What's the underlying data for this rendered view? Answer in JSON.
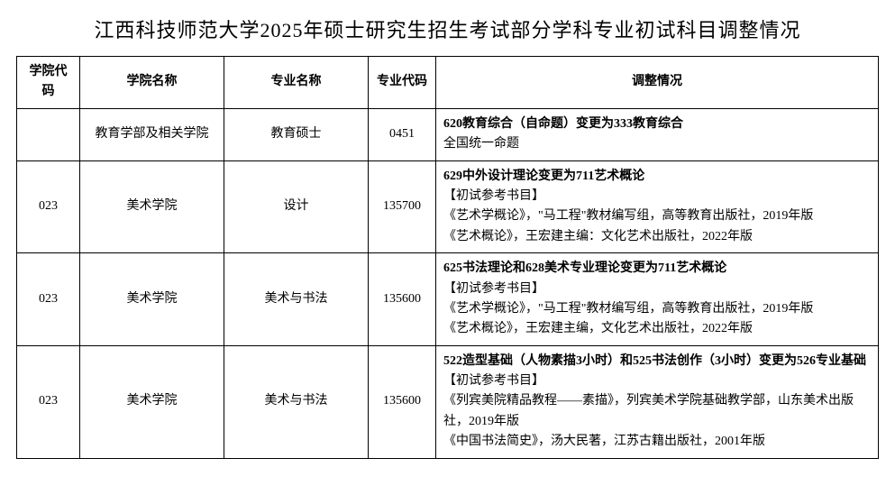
{
  "title": "江西科技师范大学2025年硕士研究生招生考试部分学科专业初试科目调整情况",
  "columns": {
    "c1": "学院代码",
    "c2": "学院名称",
    "c3": "专业名称",
    "c4": "专业代码",
    "c5": "调整情况"
  },
  "rows": [
    {
      "code": "",
      "school": "教育学部及相关学院",
      "major": "教育硕士",
      "mcode": "0451",
      "adj_bold": "620教育综合（自命题）变更为333教育综合",
      "adj_rest": "全国统一命题"
    },
    {
      "code": "023",
      "school": "美术学院",
      "major": "设计",
      "mcode": "135700",
      "adj_bold": "629中外设计理论变更为711艺术概论",
      "adj_rest": "【初试参考书目】\n《艺术学概论》，\"马工程\"教材编写组，高等教育出版社，2019年版\n《艺术概论》，王宏建主编：文化艺术出版社，2022年版"
    },
    {
      "code": "023",
      "school": "美术学院",
      "major": "美术与书法",
      "mcode": "135600",
      "adj_bold": "625书法理论和628美术专业理论变更为711艺术概论",
      "adj_rest": "【初试参考书目】\n《艺术学概论》，\"马工程\"教材编写组，高等教育出版社，2019年版\n《艺术概论》，王宏建主编，文化艺术出版社，2022年版"
    },
    {
      "code": "023",
      "school": "美术学院",
      "major": "美术与书法",
      "mcode": "135600",
      "adj_bold": "522造型基础（人物素描3小时）和525书法创作（3小时）变更为526专业基础",
      "adj_rest": "【初试参考书目】\n《列宾美院精品教程——素描》，列宾美术学院基础教学部，山东美术出版社，2019年版\n《中国书法简史》，汤大民著，江苏古籍出版社，2001年版"
    }
  ]
}
